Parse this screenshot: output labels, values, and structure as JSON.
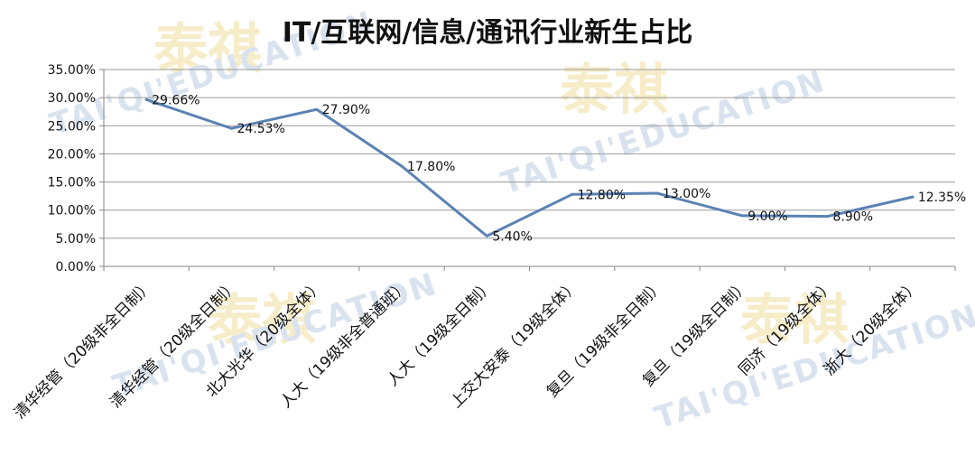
{
  "watermark": {
    "text": "TAI'QI'EDUCATION",
    "glyph": "泰祺"
  },
  "chart_data": {
    "type": "line",
    "title": "IT/互联网/信息/通讯行业新生占比",
    "categories": [
      "清华经管（20级非全日制）",
      "清华经管（20级全日制）",
      "北大光华（20级全体）",
      "人大（19级非全普通班）",
      "人大（19级全日制）",
      "上交大安泰（19级全体）",
      "复旦（19级非全日制）",
      "复旦（19级全日制）",
      "同济（19级全体）",
      "浙大（20级全体）"
    ],
    "values": [
      29.66,
      24.53,
      27.9,
      17.8,
      5.4,
      12.8,
      13.0,
      9.0,
      8.9,
      12.35
    ],
    "data_labels": [
      "29.66%",
      "24.53%",
      "27.90%",
      "17.80%",
      "5.40%",
      "12.80%",
      "13.00%",
      "9.00%",
      "8.90%",
      "12.35%"
    ],
    "y_ticks": [
      "0.00%",
      "5.00%",
      "10.00%",
      "15.00%",
      "20.00%",
      "25.00%",
      "30.00%",
      "35.00%"
    ],
    "ylim": [
      0,
      35
    ],
    "grid": true,
    "legend": "none",
    "line_color": "#5b82b4",
    "xlabel": "",
    "ylabel": ""
  }
}
